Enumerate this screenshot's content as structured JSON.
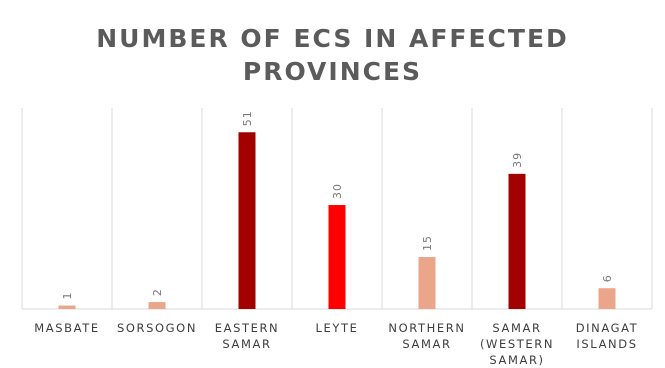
{
  "chart_data": {
    "type": "bar",
    "title": [
      "NUMBER OF ECS IN AFFECTED",
      "PROVINCES"
    ],
    "categories": [
      [
        "MASBATE"
      ],
      [
        "SORSOGON"
      ],
      [
        "EASTERN",
        "SAMAR"
      ],
      [
        "LEYTE"
      ],
      [
        "NORTHERN",
        "SAMAR"
      ],
      [
        "SAMAR",
        "(WESTERN",
        "SAMAR)"
      ],
      [
        "DINAGAT",
        "ISLANDS"
      ]
    ],
    "values": [
      1,
      2,
      51,
      30,
      15,
      39,
      6
    ],
    "bar_colors": [
      "#eaa58a",
      "#eaa58a",
      "#a30000",
      "#fe0000",
      "#eaa58a",
      "#a30000",
      "#eaa58a"
    ],
    "ylim": [
      0,
      58
    ],
    "grid": "vertical",
    "legend": "none"
  }
}
